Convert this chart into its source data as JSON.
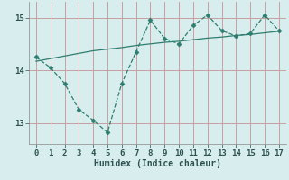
{
  "x_data": [
    0,
    1,
    2,
    3,
    4,
    5,
    6,
    7,
    8,
    9,
    10,
    11,
    12,
    13,
    14,
    15,
    16,
    17
  ],
  "y_data": [
    14.25,
    14.05,
    13.75,
    13.25,
    13.05,
    12.82,
    13.75,
    14.35,
    14.95,
    14.6,
    14.5,
    14.85,
    15.05,
    14.75,
    14.65,
    14.7,
    15.05,
    14.75
  ],
  "y_trend": [
    14.17,
    14.22,
    14.27,
    14.32,
    14.37,
    14.4,
    14.43,
    14.47,
    14.5,
    14.53,
    14.55,
    14.58,
    14.61,
    14.63,
    14.66,
    14.68,
    14.71,
    14.74
  ],
  "line_color": "#2e7d6e",
  "background_color": "#d8eeee",
  "grid_color": "#c8a0a0",
  "xlabel": "Humidex (Indice chaleur)",
  "xlim": [
    -0.5,
    17.5
  ],
  "ylim": [
    12.6,
    15.3
  ],
  "yticks": [
    13,
    14,
    15
  ],
  "xticks": [
    0,
    1,
    2,
    3,
    4,
    5,
    6,
    7,
    8,
    9,
    10,
    11,
    12,
    13,
    14,
    15,
    16,
    17
  ]
}
